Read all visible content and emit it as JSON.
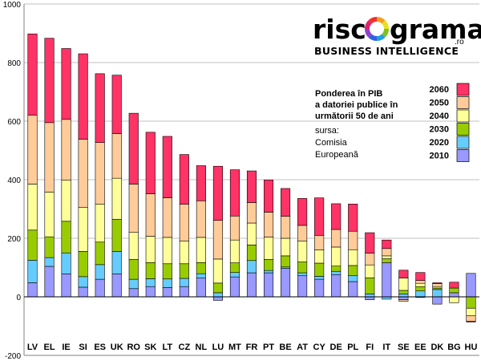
{
  "brand": {
    "part1": "risc",
    "part2": "grama",
    "domain": ".ro",
    "tagline": "BUSINESS INTELLIGENCE",
    "ring_colors": [
      "#f0a020",
      "#e8e020",
      "#80c020",
      "#20a0e0",
      "#3060e0",
      "#9040d0",
      "#e02070",
      "#f03030"
    ]
  },
  "legend": {
    "title_lines": [
      "Ponderea în PIB",
      "a datoriei publice în",
      "următorii 50 de ani"
    ],
    "source_lines": [
      "sursa:",
      "Comisia",
      "Europeană"
    ]
  },
  "chart_data": {
    "type": "bar",
    "stacked": true,
    "categories": [
      "LV",
      "EL",
      "IE",
      "SI",
      "ES",
      "UK",
      "RO",
      "SK",
      "LT",
      "CZ",
      "NL",
      "LU",
      "MT",
      "FR",
      "PT",
      "BE",
      "AT",
      "CY",
      "DE",
      "PL",
      "FI",
      "IT",
      "SE",
      "EE",
      "DK",
      "BG",
      "HU"
    ],
    "ylim": [
      -200,
      1000
    ],
    "yticks": [
      -200,
      0,
      200,
      400,
      600,
      800,
      1000
    ],
    "grid": true,
    "legend_position": "right",
    "series": [
      {
        "name": "2010",
        "color": "#9999ff",
        "values": [
          48,
          104,
          78,
          33,
          60,
          78,
          28,
          35,
          32,
          35,
          64,
          -12,
          68,
          82,
          82,
          97,
          72,
          60,
          76,
          52,
          -10,
          117,
          -10,
          -2,
          -25,
          14,
          80
        ]
      },
      {
        "name": "2020",
        "color": "#66ccff",
        "values": [
          77,
          30,
          72,
          36,
          50,
          77,
          32,
          27,
          29,
          28,
          15,
          14,
          15,
          42,
          8,
          5,
          10,
          10,
          11,
          20,
          10,
          -8,
          10,
          20,
          25,
          0,
          0
        ]
      },
      {
        "name": "2030",
        "color": "#99cc00",
        "values": [
          103,
          71,
          108,
          86,
          77,
          110,
          68,
          55,
          52,
          50,
          38,
          33,
          33,
          53,
          38,
          38,
          37,
          45,
          18,
          35,
          55,
          13,
          12,
          15,
          5,
          16,
          -39
        ]
      },
      {
        "name": "2040",
        "color": "#ffff99",
        "values": [
          157,
          153,
          140,
          150,
          130,
          140,
          92,
          90,
          90,
          78,
          86,
          82,
          78,
          75,
          76,
          60,
          72,
          45,
          65,
          54,
          44,
          10,
          42,
          11,
          5,
          -20,
          -26
        ]
      },
      {
        "name": "2050",
        "color": "#ffcc99",
        "values": [
          235,
          237,
          208,
          233,
          210,
          152,
          165,
          145,
          135,
          125,
          125,
          132,
          82,
          70,
          85,
          75,
          53,
          50,
          60,
          63,
          40,
          25,
          -5,
          10,
          10,
          0,
          -18
        ]
      },
      {
        "name": "2060",
        "color": "#ff3366",
        "values": [
          278,
          288,
          242,
          292,
          235,
          200,
          242,
          210,
          210,
          170,
          120,
          185,
          158,
          108,
          110,
          95,
          92,
          128,
          88,
          93,
          70,
          29,
          27,
          27,
          3,
          20,
          -3
        ]
      }
    ]
  }
}
